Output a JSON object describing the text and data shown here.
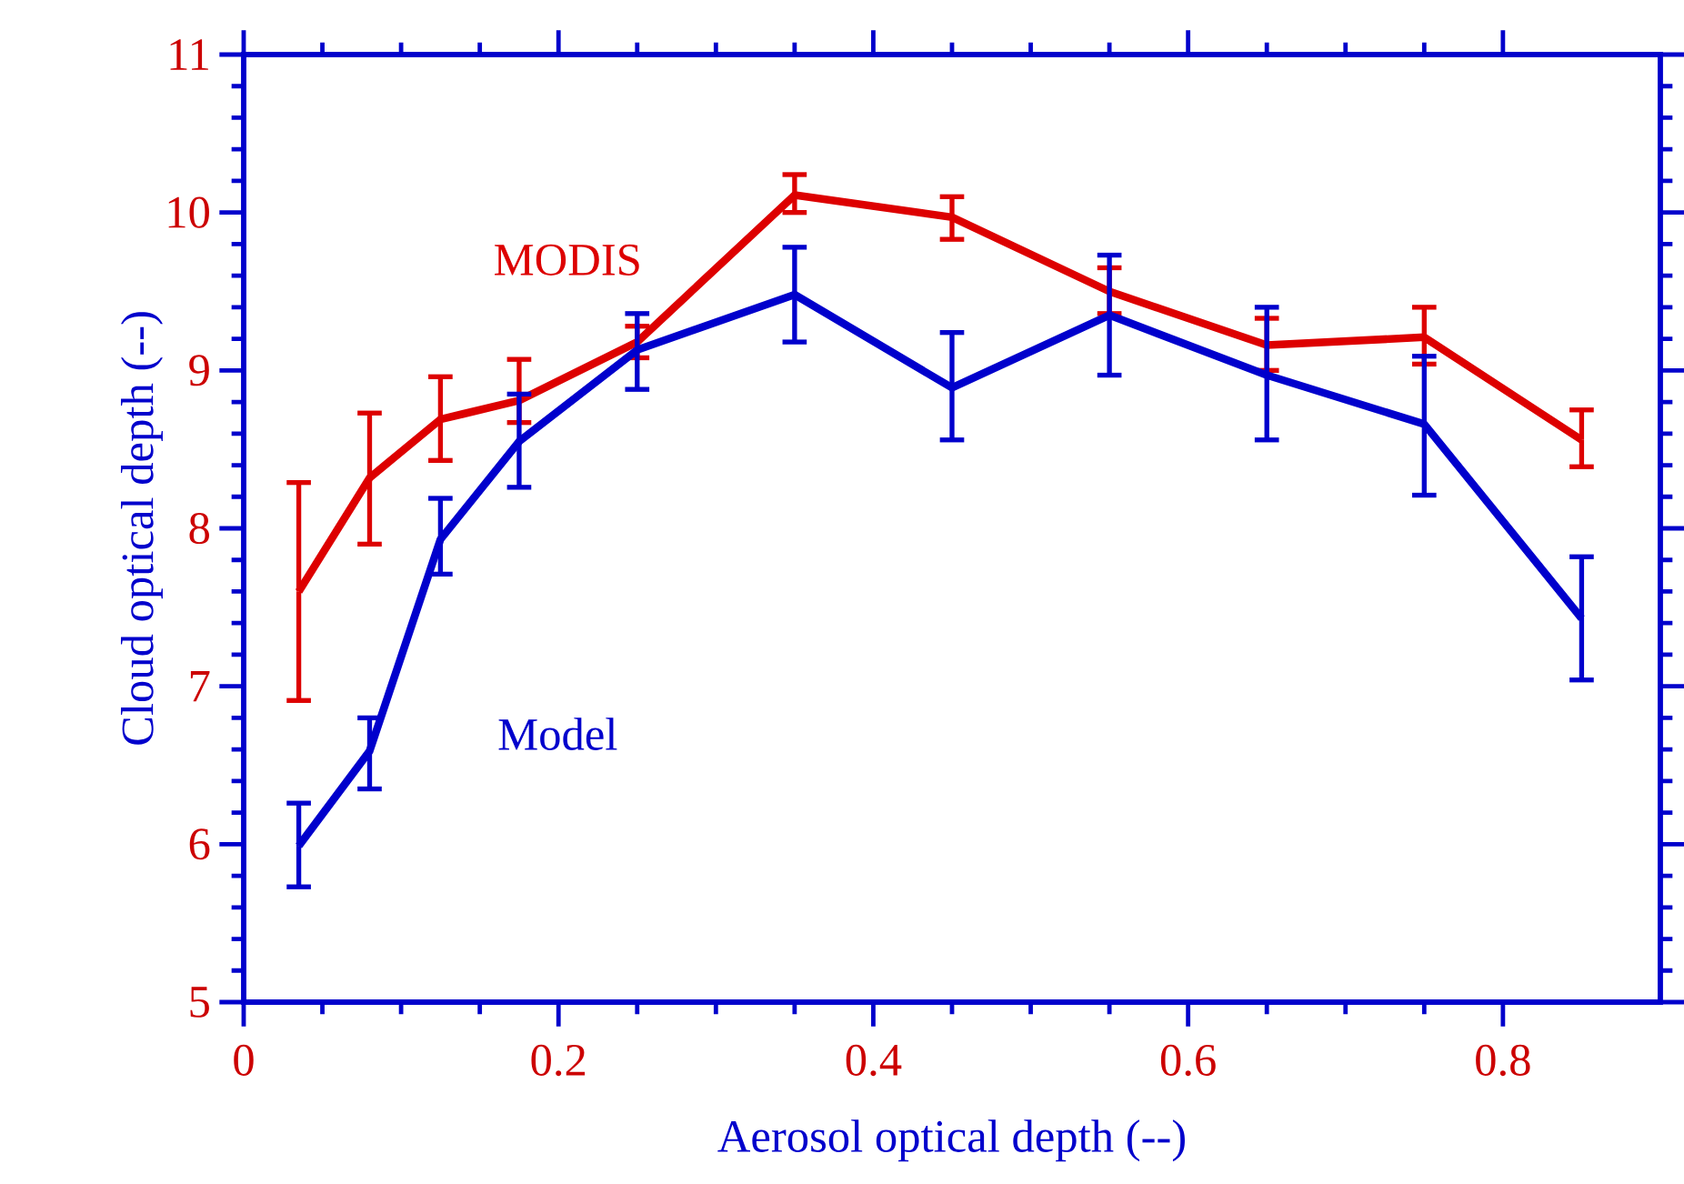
{
  "chart_data": {
    "type": "line",
    "xlabel": "Aerosol optical depth (--)",
    "ylabel": "Cloud optical depth (--)",
    "x": [
      0.035,
      0.08,
      0.125,
      0.175,
      0.25,
      0.35,
      0.45,
      0.55,
      0.65,
      0.75,
      0.85
    ],
    "series": [
      {
        "name": "MODIS",
        "color": "#dd0000",
        "values": [
          7.6,
          8.32,
          8.69,
          8.81,
          9.18,
          10.11,
          9.97,
          9.5,
          9.16,
          9.21,
          8.56
        ],
        "errors": [
          [
            6.91,
            8.29
          ],
          [
            7.9,
            8.73
          ],
          [
            8.43,
            8.96
          ],
          [
            8.67,
            9.07
          ],
          [
            9.08,
            9.28
          ],
          [
            10.0,
            10.24
          ],
          [
            9.83,
            10.1
          ],
          [
            9.36,
            9.65
          ],
          [
            9.0,
            9.33
          ],
          [
            9.04,
            9.4
          ],
          [
            8.39,
            8.75
          ]
        ]
      },
      {
        "name": "Model",
        "color": "#0000cc",
        "values": [
          5.99,
          6.59,
          7.93,
          8.55,
          9.13,
          9.48,
          8.89,
          9.35,
          8.97,
          8.66,
          7.43
        ],
        "errors": [
          [
            5.73,
            6.26
          ],
          [
            6.35,
            6.8
          ],
          [
            7.71,
            8.19
          ],
          [
            8.26,
            8.85
          ],
          [
            8.88,
            9.36
          ],
          [
            9.18,
            9.78
          ],
          [
            8.56,
            9.24
          ],
          [
            8.97,
            9.73
          ],
          [
            8.56,
            9.4
          ],
          [
            8.21,
            9.09
          ],
          [
            7.04,
            7.82
          ]
        ]
      }
    ],
    "xlim": [
      0,
      0.9
    ],
    "ylim": [
      5,
      11
    ],
    "xticks": [
      0,
      0.2,
      0.4,
      0.6,
      0.8
    ],
    "yticks": [
      5,
      6,
      7,
      8,
      9,
      10,
      11
    ],
    "grid": false,
    "legend": false,
    "marker": "none",
    "line_style": "solid"
  }
}
